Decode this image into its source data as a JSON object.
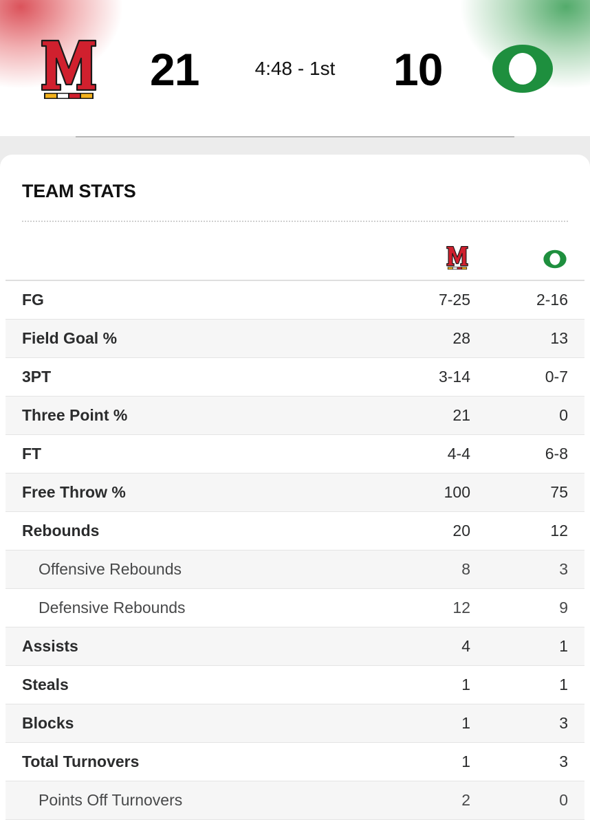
{
  "game": {
    "home_score": "21",
    "away_score": "10",
    "clock": "4:48 - 1st",
    "home_logo": "maryland-m-logo",
    "away_logo": "oregon-o-logo"
  },
  "team_stats": {
    "title": "TEAM STATS",
    "rows": [
      {
        "label": "FG",
        "home": "7-25",
        "away": "2-16",
        "sub": false
      },
      {
        "label": "Field Goal %",
        "home": "28",
        "away": "13",
        "sub": false
      },
      {
        "label": "3PT",
        "home": "3-14",
        "away": "0-7",
        "sub": false
      },
      {
        "label": "Three Point %",
        "home": "21",
        "away": "0",
        "sub": false
      },
      {
        "label": "FT",
        "home": "4-4",
        "away": "6-8",
        "sub": false
      },
      {
        "label": "Free Throw %",
        "home": "100",
        "away": "75",
        "sub": false
      },
      {
        "label": "Rebounds",
        "home": "20",
        "away": "12",
        "sub": false
      },
      {
        "label": "Offensive Rebounds",
        "home": "8",
        "away": "3",
        "sub": true
      },
      {
        "label": "Defensive Rebounds",
        "home": "12",
        "away": "9",
        "sub": true
      },
      {
        "label": "Assists",
        "home": "4",
        "away": "1",
        "sub": false
      },
      {
        "label": "Steals",
        "home": "1",
        "away": "1",
        "sub": false
      },
      {
        "label": "Blocks",
        "home": "1",
        "away": "3",
        "sub": false
      },
      {
        "label": "Total Turnovers",
        "home": "1",
        "away": "3",
        "sub": false
      },
      {
        "label": "Points Off Turnovers",
        "home": "2",
        "away": "0",
        "sub": true
      }
    ]
  },
  "colors": {
    "maryland_red": "#d0202e",
    "maryland_gold": "#f2b11c",
    "oregon_green": "#1e8f3e",
    "oregon_yellow": "#f5e32b"
  }
}
